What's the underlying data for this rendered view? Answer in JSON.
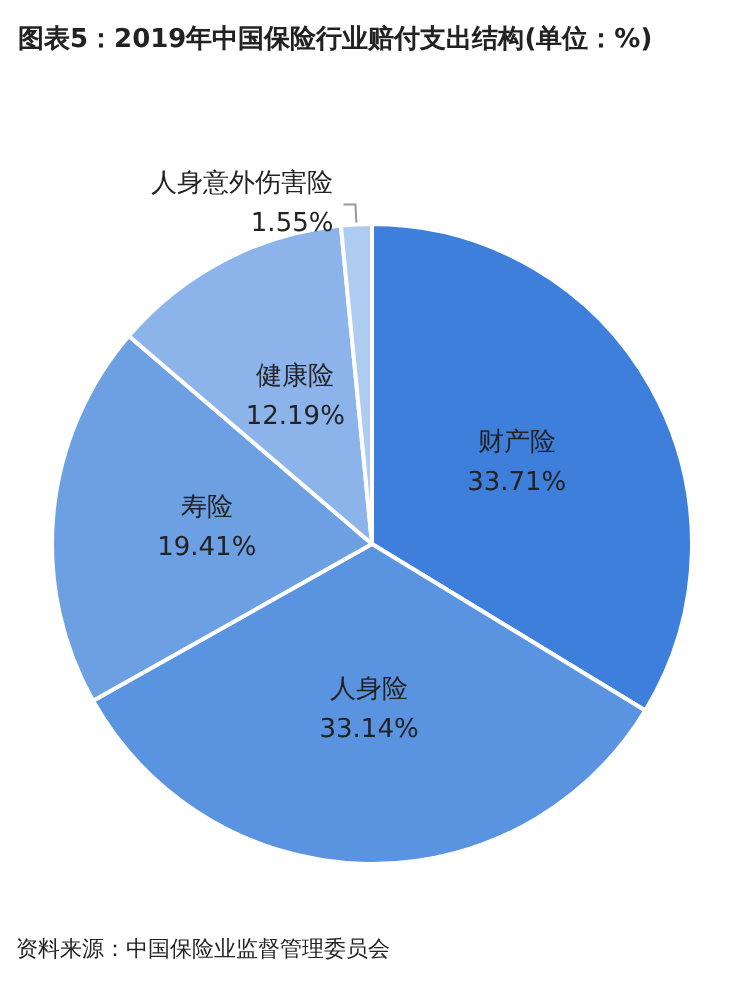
{
  "chart_data": {
    "type": "pie",
    "title": "图表5：2019年中国保险行业赔付支出结构(单位：%)",
    "categories": [
      "财产险",
      "人身险",
      "寿险",
      "健康险",
      "人身意外伤害险"
    ],
    "values": [
      33.71,
      33.14,
      19.41,
      12.19,
      1.55
    ],
    "colors": [
      "#3d7fdb",
      "#5a93e0",
      "#6d9fe3",
      "#8cb4eb",
      "#aecbf0"
    ],
    "value_labels": [
      "33.71%",
      "33.14%",
      "19.41%",
      "12.19%",
      "1.55%"
    ],
    "legend": false,
    "annotations": [
      "资料来源：中国保险业监督管理委员会"
    ]
  }
}
